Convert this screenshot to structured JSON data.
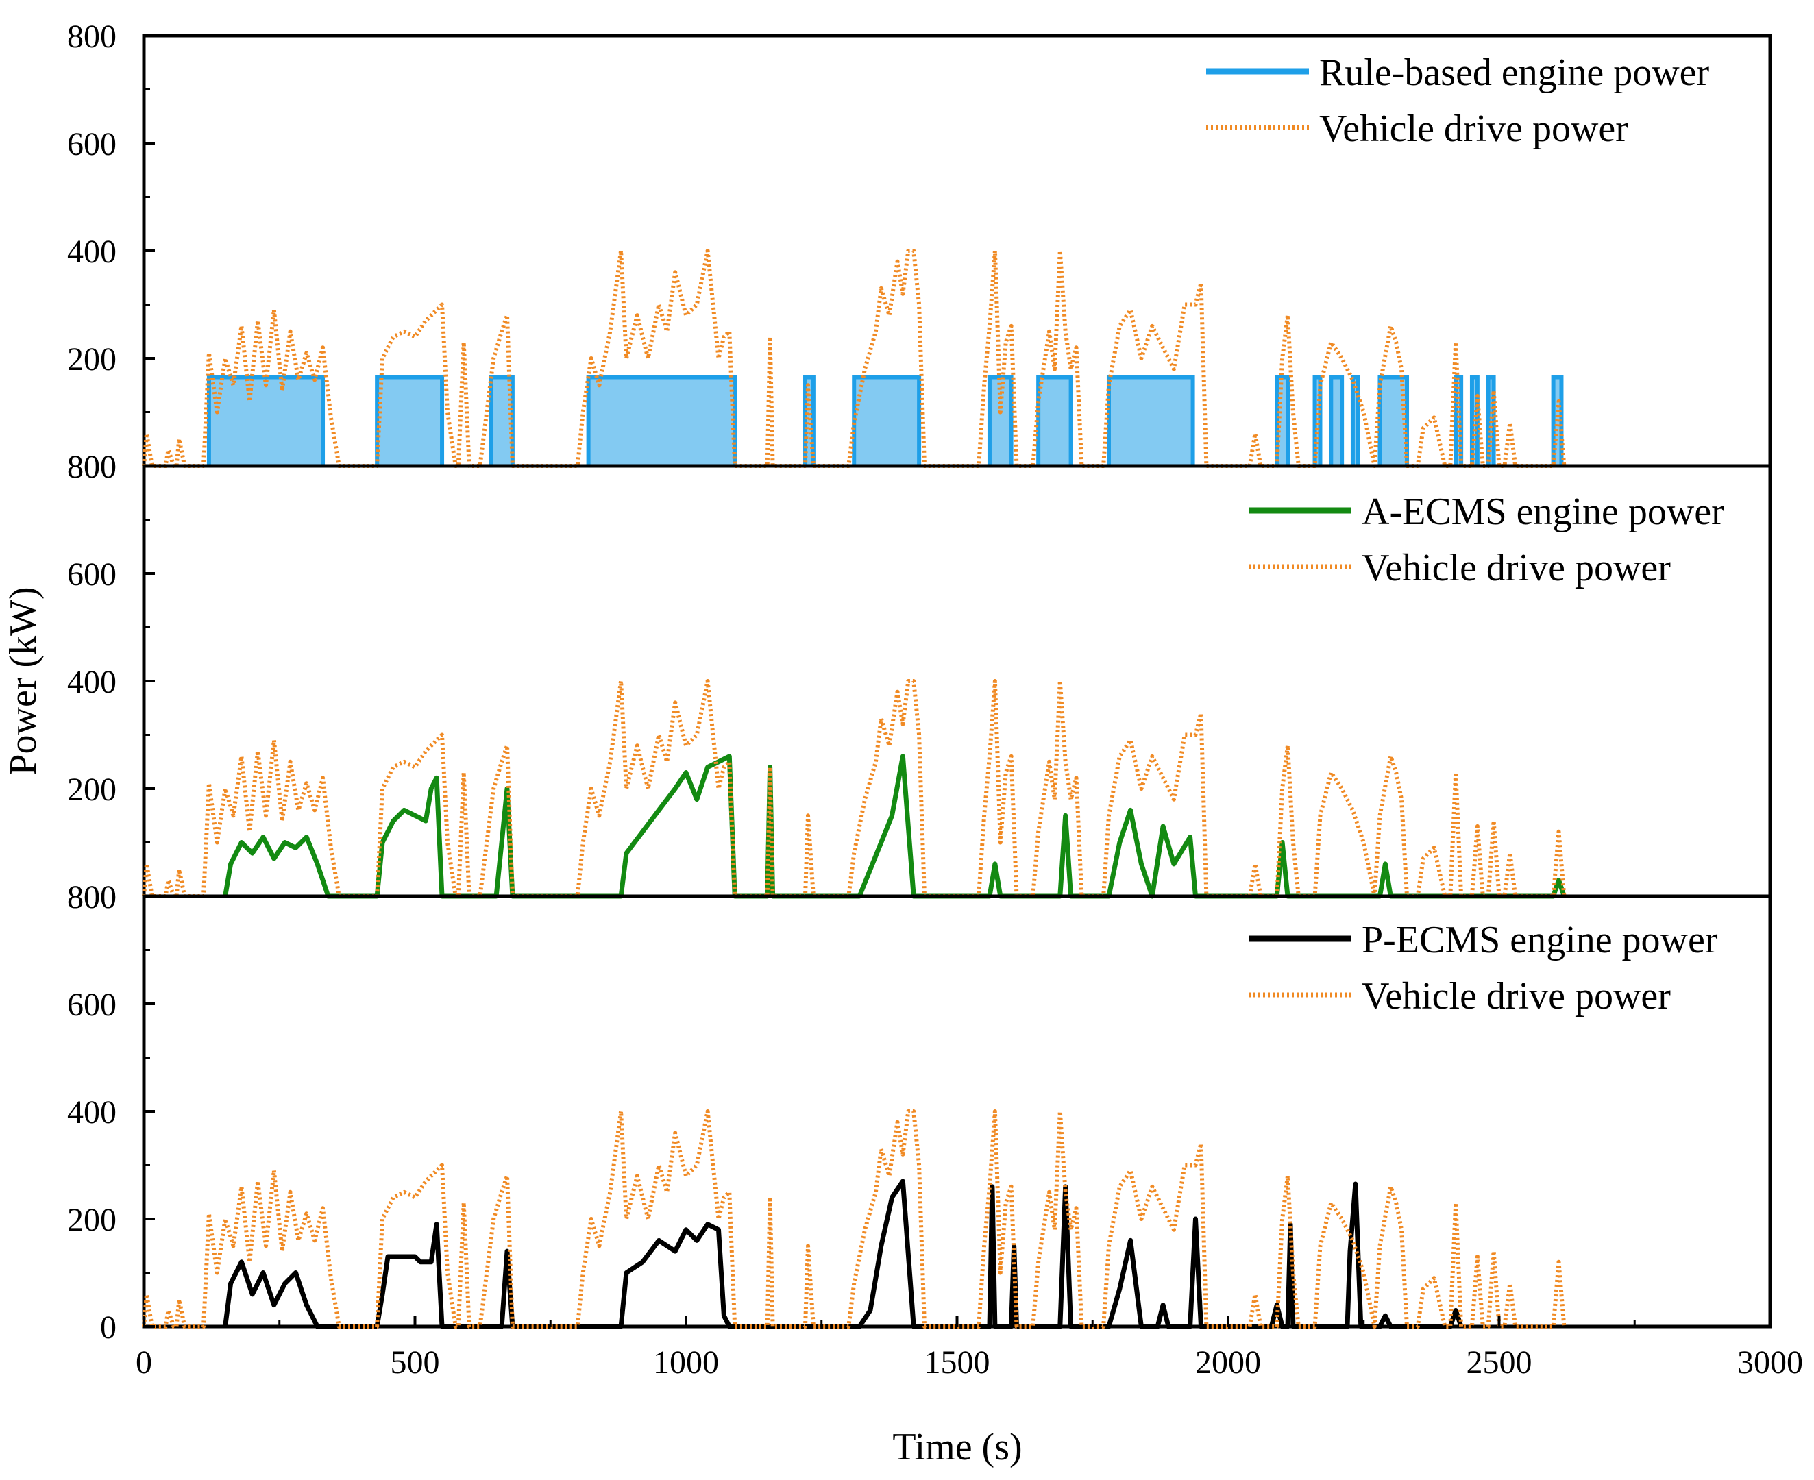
{
  "chart_data": {
    "type": "line",
    "xlabel": "Time (s)",
    "ylabel": "Power (kW)",
    "xlim": [
      0,
      3000
    ],
    "x_ticks": [
      "0",
      "500",
      "1000",
      "1500",
      "2000",
      "2500",
      "3000"
    ],
    "ylim": [
      0,
      800
    ],
    "panel_y_ticks": [
      [
        "800",
        "600",
        "400",
        "200",
        "800"
      ],
      [
        "800",
        "600",
        "400",
        "200",
        "800"
      ],
      [
        "800",
        "600",
        "400",
        "200",
        "0"
      ]
    ],
    "grid": false,
    "legend_position": "top-right",
    "panels": [
      {
        "name": "rule-based",
        "legend": [
          "Rule-based engine power",
          "Vehicle drive power"
        ],
        "engine_color": "#1E9FE8",
        "engine_style": "solid",
        "engine_mode": "on-off",
        "engine_level": 165,
        "engine_on_intervals": [
          [
            120,
            330
          ],
          [
            430,
            550
          ],
          [
            640,
            680
          ],
          [
            820,
            1090
          ],
          [
            1220,
            1235
          ],
          [
            1310,
            1430
          ],
          [
            1560,
            1600
          ],
          [
            1650,
            1710
          ],
          [
            1780,
            1935
          ],
          [
            2090,
            2110
          ],
          [
            2160,
            2170
          ],
          [
            2190,
            2210
          ],
          [
            2230,
            2240
          ],
          [
            2280,
            2330
          ],
          [
            2420,
            2430
          ],
          [
            2450,
            2460
          ],
          [
            2480,
            2490
          ],
          [
            2600,
            2615
          ]
        ],
        "engine_points": []
      },
      {
        "name": "a-ecms",
        "legend": [
          "A-ECMS engine power",
          "Vehicle drive power"
        ],
        "engine_color": "#138A12",
        "engine_style": "solid",
        "engine_mode": "profile",
        "engine_level": 0,
        "engine_on_intervals": [],
        "engine_points": [
          [
            150,
            0
          ],
          [
            160,
            60
          ],
          [
            180,
            100
          ],
          [
            200,
            80
          ],
          [
            220,
            110
          ],
          [
            240,
            70
          ],
          [
            260,
            100
          ],
          [
            280,
            90
          ],
          [
            300,
            110
          ],
          [
            320,
            60
          ],
          [
            340,
            0
          ],
          [
            430,
            0
          ],
          [
            440,
            100
          ],
          [
            460,
            140
          ],
          [
            480,
            160
          ],
          [
            500,
            150
          ],
          [
            520,
            140
          ],
          [
            530,
            200
          ],
          [
            540,
            220
          ],
          [
            550,
            0
          ],
          [
            650,
            0
          ],
          [
            660,
            100
          ],
          [
            670,
            200
          ],
          [
            680,
            0
          ],
          [
            880,
            0
          ],
          [
            890,
            80
          ],
          [
            920,
            120
          ],
          [
            950,
            160
          ],
          [
            980,
            200
          ],
          [
            1000,
            230
          ],
          [
            1020,
            180
          ],
          [
            1040,
            240
          ],
          [
            1060,
            250
          ],
          [
            1080,
            260
          ],
          [
            1090,
            0
          ],
          [
            1150,
            0
          ],
          [
            1155,
            240
          ],
          [
            1160,
            0
          ],
          [
            1320,
            0
          ],
          [
            1340,
            50
          ],
          [
            1360,
            100
          ],
          [
            1380,
            150
          ],
          [
            1400,
            260
          ],
          [
            1420,
            0
          ],
          [
            1560,
            0
          ],
          [
            1570,
            60
          ],
          [
            1580,
            0
          ],
          [
            1690,
            0
          ],
          [
            1700,
            150
          ],
          [
            1710,
            0
          ],
          [
            1780,
            0
          ],
          [
            1800,
            100
          ],
          [
            1820,
            160
          ],
          [
            1840,
            60
          ],
          [
            1860,
            0
          ],
          [
            1880,
            130
          ],
          [
            1900,
            60
          ],
          [
            1930,
            110
          ],
          [
            1940,
            0
          ],
          [
            2090,
            0
          ],
          [
            2100,
            100
          ],
          [
            2110,
            0
          ],
          [
            2280,
            0
          ],
          [
            2290,
            60
          ],
          [
            2300,
            0
          ],
          [
            2600,
            0
          ],
          [
            2610,
            30
          ],
          [
            2620,
            0
          ]
        ]
      },
      {
        "name": "p-ecms",
        "legend": [
          "P-ECMS engine power",
          "Vehicle drive power"
        ],
        "engine_color": "#000000",
        "engine_style": "solid",
        "engine_mode": "profile",
        "engine_level": 0,
        "engine_on_intervals": [],
        "engine_points": [
          [
            150,
            0
          ],
          [
            160,
            80
          ],
          [
            180,
            120
          ],
          [
            200,
            60
          ],
          [
            220,
            100
          ],
          [
            240,
            40
          ],
          [
            260,
            80
          ],
          [
            280,
            100
          ],
          [
            300,
            40
          ],
          [
            320,
            0
          ],
          [
            430,
            0
          ],
          [
            440,
            60
          ],
          [
            450,
            130
          ],
          [
            500,
            130
          ],
          [
            510,
            120
          ],
          [
            530,
            120
          ],
          [
            540,
            190
          ],
          [
            550,
            0
          ],
          [
            660,
            0
          ],
          [
            670,
            140
          ],
          [
            680,
            0
          ],
          [
            880,
            0
          ],
          [
            890,
            100
          ],
          [
            920,
            120
          ],
          [
            950,
            160
          ],
          [
            980,
            140
          ],
          [
            1000,
            180
          ],
          [
            1020,
            160
          ],
          [
            1040,
            190
          ],
          [
            1060,
            180
          ],
          [
            1070,
            20
          ],
          [
            1080,
            0
          ],
          [
            1320,
            0
          ],
          [
            1340,
            30
          ],
          [
            1360,
            150
          ],
          [
            1380,
            240
          ],
          [
            1400,
            270
          ],
          [
            1420,
            0
          ],
          [
            1560,
            0
          ],
          [
            1565,
            260
          ],
          [
            1570,
            0
          ],
          [
            1600,
            0
          ],
          [
            1605,
            150
          ],
          [
            1610,
            0
          ],
          [
            1690,
            0
          ],
          [
            1700,
            260
          ],
          [
            1710,
            0
          ],
          [
            1780,
            0
          ],
          [
            1800,
            70
          ],
          [
            1820,
            160
          ],
          [
            1840,
            0
          ],
          [
            1870,
            0
          ],
          [
            1880,
            40
          ],
          [
            1890,
            0
          ],
          [
            1930,
            0
          ],
          [
            1940,
            200
          ],
          [
            1950,
            0
          ],
          [
            2080,
            0
          ],
          [
            2090,
            40
          ],
          [
            2100,
            0
          ],
          [
            2110,
            0
          ],
          [
            2115,
            190
          ],
          [
            2120,
            0
          ],
          [
            2220,
            0
          ],
          [
            2225,
            140
          ],
          [
            2235,
            265
          ],
          [
            2245,
            0
          ],
          [
            2280,
            0
          ],
          [
            2290,
            20
          ],
          [
            2300,
            0
          ],
          [
            2410,
            0
          ],
          [
            2420,
            30
          ],
          [
            2430,
            0
          ]
        ]
      }
    ],
    "vehicle_drive_power": {
      "color": "#F08A24",
      "style": "dotted",
      "bursts": [
        [
          0,
          0
        ],
        [
          5,
          60
        ],
        [
          15,
          0
        ],
        [
          40,
          0
        ],
        [
          45,
          30
        ],
        [
          55,
          0
        ],
        [
          60,
          0
        ],
        [
          65,
          50
        ],
        [
          75,
          0
        ],
        [
          110,
          0
        ],
        [
          120,
          210
        ],
        [
          135,
          100
        ],
        [
          150,
          200
        ],
        [
          165,
          150
        ],
        [
          180,
          260
        ],
        [
          195,
          120
        ],
        [
          210,
          270
        ],
        [
          225,
          150
        ],
        [
          240,
          290
        ],
        [
          255,
          140
        ],
        [
          270,
          250
        ],
        [
          285,
          160
        ],
        [
          300,
          210
        ],
        [
          315,
          160
        ],
        [
          330,
          220
        ],
        [
          345,
          90
        ],
        [
          360,
          0
        ],
        [
          430,
          0
        ],
        [
          440,
          200
        ],
        [
          460,
          240
        ],
        [
          480,
          250
        ],
        [
          500,
          240
        ],
        [
          520,
          270
        ],
        [
          540,
          290
        ],
        [
          550,
          300
        ],
        [
          560,
          100
        ],
        [
          575,
          0
        ],
        [
          580,
          0
        ],
        [
          590,
          230
        ],
        [
          600,
          0
        ],
        [
          620,
          0
        ],
        [
          630,
          80
        ],
        [
          645,
          200
        ],
        [
          660,
          250
        ],
        [
          670,
          280
        ],
        [
          680,
          0
        ],
        [
          800,
          0
        ],
        [
          810,
          100
        ],
        [
          825,
          200
        ],
        [
          840,
          150
        ],
        [
          860,
          250
        ],
        [
          880,
          400
        ],
        [
          890,
          200
        ],
        [
          910,
          280
        ],
        [
          930,
          200
        ],
        [
          950,
          300
        ],
        [
          965,
          250
        ],
        [
          980,
          360
        ],
        [
          1000,
          280
        ],
        [
          1020,
          300
        ],
        [
          1040,
          400
        ],
        [
          1050,
          300
        ],
        [
          1060,
          200
        ],
        [
          1070,
          240
        ],
        [
          1080,
          250
        ],
        [
          1090,
          0
        ],
        [
          1150,
          0
        ],
        [
          1155,
          240
        ],
        [
          1160,
          0
        ],
        [
          1220,
          0
        ],
        [
          1225,
          150
        ],
        [
          1235,
          0
        ],
        [
          1300,
          0
        ],
        [
          1310,
          80
        ],
        [
          1330,
          180
        ],
        [
          1350,
          250
        ],
        [
          1360,
          330
        ],
        [
          1375,
          280
        ],
        [
          1390,
          380
        ],
        [
          1400,
          320
        ],
        [
          1410,
          400
        ],
        [
          1420,
          400
        ],
        [
          1430,
          300
        ],
        [
          1440,
          0
        ],
        [
          1540,
          0
        ],
        [
          1550,
          150
        ],
        [
          1560,
          260
        ],
        [
          1570,
          400
        ],
        [
          1580,
          100
        ],
        [
          1590,
          230
        ],
        [
          1600,
          260
        ],
        [
          1610,
          0
        ],
        [
          1640,
          0
        ],
        [
          1650,
          120
        ],
        [
          1670,
          250
        ],
        [
          1680,
          180
        ],
        [
          1690,
          400
        ],
        [
          1700,
          250
        ],
        [
          1710,
          180
        ],
        [
          1720,
          220
        ],
        [
          1730,
          0
        ],
        [
          1770,
          0
        ],
        [
          1780,
          150
        ],
        [
          1800,
          260
        ],
        [
          1820,
          290
        ],
        [
          1840,
          200
        ],
        [
          1860,
          260
        ],
        [
          1880,
          220
        ],
        [
          1900,
          180
        ],
        [
          1920,
          300
        ],
        [
          1940,
          300
        ],
        [
          1950,
          340
        ],
        [
          1960,
          0
        ],
        [
          2040,
          0
        ],
        [
          2050,
          60
        ],
        [
          2060,
          0
        ],
        [
          2090,
          0
        ],
        [
          2100,
          200
        ],
        [
          2110,
          280
        ],
        [
          2120,
          100
        ],
        [
          2130,
          0
        ],
        [
          2160,
          0
        ],
        [
          2170,
          150
        ],
        [
          2190,
          230
        ],
        [
          2210,
          200
        ],
        [
          2230,
          160
        ],
        [
          2250,
          100
        ],
        [
          2270,
          0
        ],
        [
          2280,
          150
        ],
        [
          2300,
          260
        ],
        [
          2310,
          230
        ],
        [
          2320,
          180
        ],
        [
          2330,
          0
        ],
        [
          2350,
          0
        ],
        [
          2360,
          70
        ],
        [
          2380,
          90
        ],
        [
          2400,
          0
        ],
        [
          2410,
          0
        ],
        [
          2420,
          230
        ],
        [
          2430,
          0
        ],
        [
          2450,
          0
        ],
        [
          2460,
          130
        ],
        [
          2470,
          0
        ],
        [
          2480,
          0
        ],
        [
          2490,
          140
        ],
        [
          2500,
          0
        ],
        [
          2510,
          0
        ],
        [
          2520,
          80
        ],
        [
          2530,
          0
        ],
        [
          2600,
          0
        ],
        [
          2610,
          120
        ],
        [
          2620,
          0
        ]
      ]
    }
  }
}
